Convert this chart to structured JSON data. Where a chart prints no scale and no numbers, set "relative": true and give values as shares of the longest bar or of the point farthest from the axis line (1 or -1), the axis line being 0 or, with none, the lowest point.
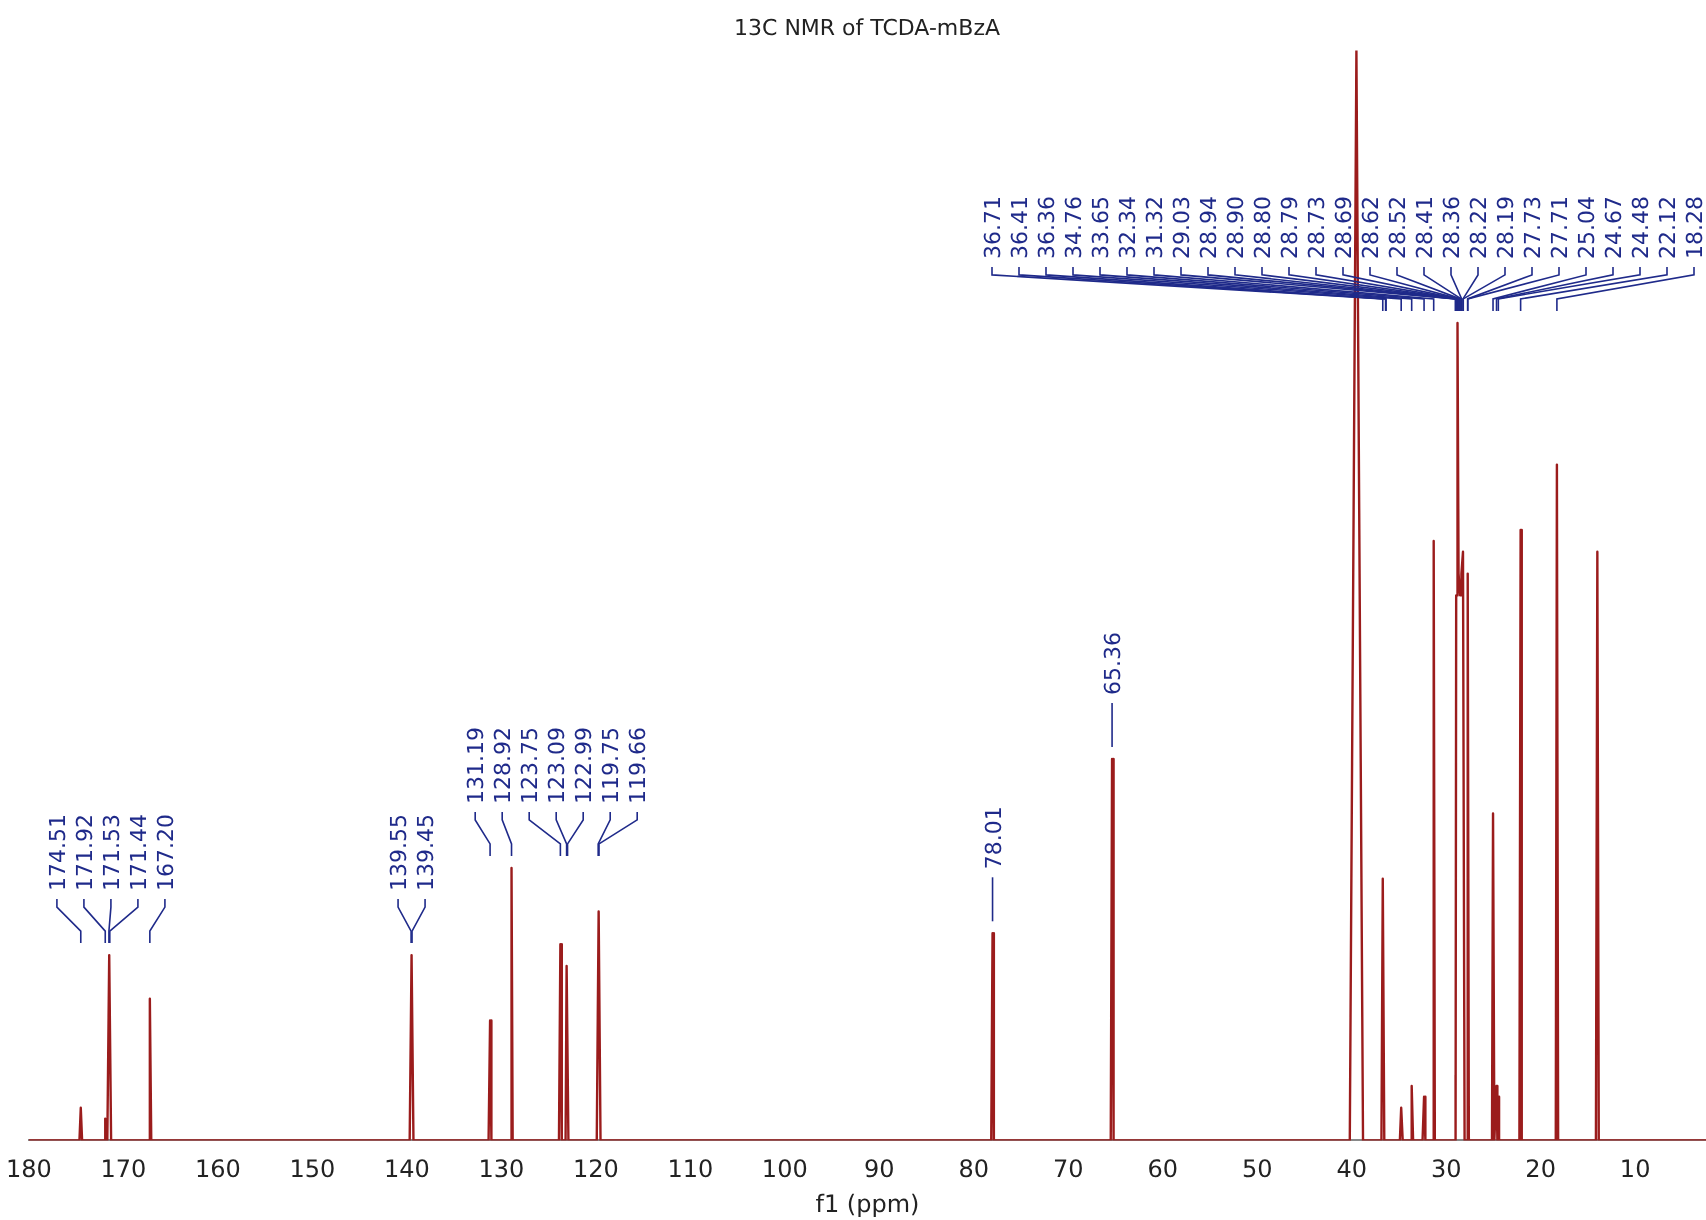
{
  "chart_data": {
    "type": "line",
    "title": "13C NMR of TCDA-mBzA",
    "xlabel": "f1 (ppm)",
    "relative": true,
    "grid": false,
    "legend": false,
    "tick_labels": "x",
    "marker": "none",
    "line_style": "solid",
    "xlim": [
      180,
      2.5
    ],
    "xticks": [
      180,
      170,
      160,
      150,
      140,
      130,
      120,
      110,
      100,
      90,
      80,
      70,
      60,
      50,
      40,
      30,
      20,
      10
    ],
    "series": [
      {
        "color": "#9b1c1c",
        "x": [
          180,
          174.65,
          174.51,
          174.37,
          172.05,
          171.92,
          171.7,
          171.5,
          171.3,
          167.35,
          167.2,
          167.05,
          139.7,
          139.5,
          139.3,
          131.35,
          131.19,
          131.05,
          129.05,
          128.92,
          128.8,
          123.9,
          123.75,
          123.6,
          123.2,
          123.09,
          122.9,
          119.9,
          119.7,
          119.5,
          78.15,
          78.01,
          77.87,
          65.5,
          65.36,
          65.2,
          40.2,
          39.5,
          38.8,
          36.85,
          36.71,
          36.55,
          34.9,
          34.76,
          34.6,
          33.8,
          33.65,
          33.5,
          32.5,
          32.34,
          32.2,
          31.45,
          31.32,
          31.2,
          29.15,
          29.03,
          28.98,
          28.94,
          28.8,
          28.69,
          28.52,
          28.41,
          28.36,
          28.22,
          28.05,
          27.85,
          27.72,
          27.6,
          25.15,
          25.04,
          24.9,
          24.75,
          24.67,
          24.58,
          24.48,
          24.4,
          22.25,
          22.12,
          22.0,
          18.4,
          18.28,
          18.15,
          14.15,
          14.0,
          13.85,
          2.5
        ],
        "values": [
          0,
          0,
          0.03,
          0,
          0,
          0.02,
          0,
          0.17,
          0,
          0,
          0.13,
          0,
          0,
          0.17,
          0,
          0,
          0.11,
          0,
          0,
          0.25,
          0,
          0,
          0.18,
          0,
          0,
          0.16,
          0,
          0,
          0.21,
          0,
          0,
          0.19,
          0,
          0,
          0.35,
          0,
          0,
          1,
          0,
          0,
          0.24,
          0,
          0,
          0.03,
          0,
          0,
          0.05,
          0,
          0,
          0.04,
          0,
          0,
          0.55,
          0,
          0,
          0.06,
          0,
          0.5,
          0.75,
          0.52,
          0.5,
          0.5,
          0.52,
          0.54,
          0,
          0,
          0.52,
          0,
          0,
          0.3,
          0,
          0,
          0.05,
          0,
          0.04,
          0,
          0,
          0.56,
          0,
          0,
          0.62,
          0,
          0,
          0.54,
          0,
          0
        ]
      }
    ],
    "annotations": [
      {
        "text": "174.51",
        "x": 174.51
      },
      {
        "text": "171.92",
        "x": 171.92
      },
      {
        "text": "171.53",
        "x": 171.53
      },
      {
        "text": "171.44",
        "x": 171.44
      },
      {
        "text": "167.20",
        "x": 167.2
      },
      {
        "text": "139.55",
        "x": 139.55
      },
      {
        "text": "139.45",
        "x": 139.45
      },
      {
        "text": "131.19",
        "x": 131.19
      },
      {
        "text": "128.92",
        "x": 128.92
      },
      {
        "text": "123.75",
        "x": 123.75
      },
      {
        "text": "123.09",
        "x": 123.09
      },
      {
        "text": "122.99",
        "x": 122.99
      },
      {
        "text": "119.75",
        "x": 119.75
      },
      {
        "text": "119.66",
        "x": 119.66
      },
      {
        "text": "78.01",
        "x": 78.01
      },
      {
        "text": "65.36",
        "x": 65.36
      },
      {
        "text": "36.71",
        "x": 36.71
      },
      {
        "text": "36.41",
        "x": 36.41
      },
      {
        "text": "36.36",
        "x": 36.36
      },
      {
        "text": "34.76",
        "x": 34.76
      },
      {
        "text": "33.65",
        "x": 33.65
      },
      {
        "text": "32.34",
        "x": 32.34
      },
      {
        "text": "31.32",
        "x": 31.32
      },
      {
        "text": "29.03",
        "x": 29.03
      },
      {
        "text": "28.94",
        "x": 28.94
      },
      {
        "text": "28.90",
        "x": 28.9
      },
      {
        "text": "28.80",
        "x": 28.8
      },
      {
        "text": "28.79",
        "x": 28.79
      },
      {
        "text": "28.73",
        "x": 28.73
      },
      {
        "text": "28.69",
        "x": 28.69
      },
      {
        "text": "28.62",
        "x": 28.62
      },
      {
        "text": "28.52",
        "x": 28.52
      },
      {
        "text": "28.41",
        "x": 28.41
      },
      {
        "text": "28.36",
        "x": 28.36
      },
      {
        "text": "28.22",
        "x": 28.22
      },
      {
        "text": "28.19",
        "x": 28.19
      },
      {
        "text": "27.73",
        "x": 27.73
      },
      {
        "text": "27.71",
        "x": 27.71
      },
      {
        "text": "25.04",
        "x": 25.04
      },
      {
        "text": "24.67",
        "x": 24.67
      },
      {
        "text": "24.48",
        "x": 24.48
      },
      {
        "text": "22.12",
        "x": 22.12
      },
      {
        "text": "18.28",
        "x": 18.28
      }
    ]
  }
}
